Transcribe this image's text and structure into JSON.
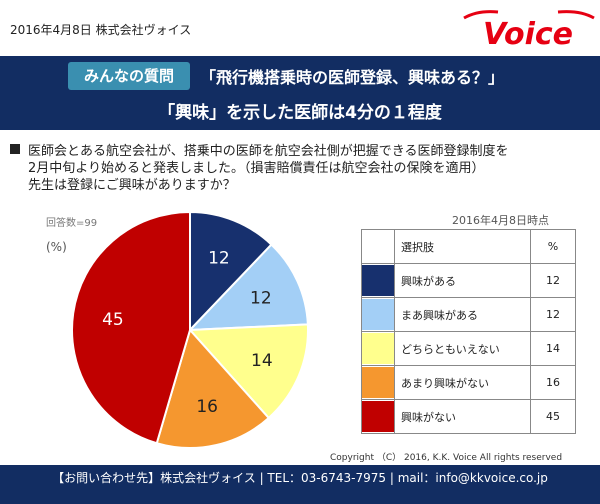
{
  "header": {
    "date_company": "2016年4月8日 株式会社ヴォイス",
    "logo_text": "Voice"
  },
  "banner": {
    "label": "みんなの質問",
    "question": "「飛行機搭乗時の医師登録、興味ある？」",
    "headline": "「興味」を示した医師は4分の１程度"
  },
  "body": {
    "line1": "医師会とある航空会社が、搭乗中の医師を航空会社側が把握できる医師登録制度を",
    "line2": "2月中旬より始めると発表しました。（損害賠償責任は航空会社の保険を適用）",
    "line3": "先生は登録にご興味がありますか？"
  },
  "respondents": "回答数=99",
  "unit": "(%)",
  "as_of": "2016年4月8日時点",
  "legend_table": {
    "col_option": "選択肢",
    "col_pct": "%"
  },
  "chart_data": {
    "type": "pie",
    "categories": [
      "興味がある",
      "まあ興味がある",
      "どちらともいえない",
      "あまり興味がない",
      "興味がない"
    ],
    "values": [
      12,
      12,
      14,
      16,
      45
    ],
    "colors": [
      "#17306e",
      "#a3cff6",
      "#ffff8d",
      "#f5972f",
      "#c00000"
    ],
    "label_colors": [
      "#ffffff",
      "#222222",
      "#222222",
      "#222222",
      "#ffffff"
    ],
    "start": "12 o'clock, clockwise"
  },
  "copyright": "Copyright （C） 2016, K.K. Voice All rights reserved",
  "footer": "【お問い合わせ先】株式会社ヴォイス | TEL：03-6743-7975 | mail：info@kkvoice.co.jp"
}
